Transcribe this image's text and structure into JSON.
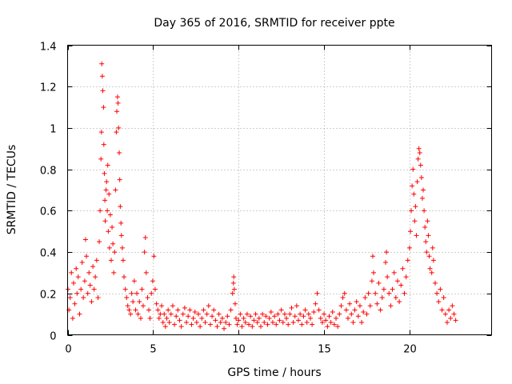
{
  "chart_data": {
    "type": "scatter",
    "title": "Day 365 of 2016, SRMTID for receiver ppte",
    "xlabel": "GPS time / hours",
    "ylabel": "SRMTID / TECUs",
    "xlim": [
      0,
      24.8
    ],
    "ylim": [
      0,
      1.4
    ],
    "xticks": [
      0,
      5,
      10,
      15,
      20
    ],
    "xtick_labels": [
      "0",
      "5",
      "10",
      "15",
      "20"
    ],
    "yticks": [
      0,
      0.2,
      0.4,
      0.6,
      0.8,
      1.0,
      1.2,
      1.4
    ],
    "ytick_labels": [
      "0",
      "0.2",
      "0.4",
      "0.6",
      "0.8",
      "1",
      "1.2",
      "1.4"
    ],
    "grid": true,
    "marker": "+",
    "color": "#ff0000",
    "series": [
      {
        "name": "SRMTID",
        "points": [
          [
            0.02,
            0.22
          ],
          [
            0.08,
            0.12
          ],
          [
            0.15,
            0.18
          ],
          [
            0.22,
            0.3
          ],
          [
            0.3,
            0.08
          ],
          [
            0.35,
            0.25
          ],
          [
            0.42,
            0.15
          ],
          [
            0.5,
            0.32
          ],
          [
            0.55,
            0.2
          ],
          [
            0.62,
            0.28
          ],
          [
            0.7,
            0.1
          ],
          [
            0.78,
            0.22
          ],
          [
            0.85,
            0.35
          ],
          [
            0.92,
            0.18
          ],
          [
            1.0,
            0.26
          ],
          [
            1.05,
            0.46
          ],
          [
            1.1,
            0.38
          ],
          [
            1.18,
            0.2
          ],
          [
            1.25,
            0.3
          ],
          [
            1.32,
            0.24
          ],
          [
            1.4,
            0.16
          ],
          [
            1.48,
            0.33
          ],
          [
            1.55,
            0.22
          ],
          [
            1.62,
            0.28
          ],
          [
            1.7,
            0.36
          ],
          [
            1.78,
            0.18
          ],
          [
            1.85,
            0.45
          ],
          [
            1.9,
            0.6
          ],
          [
            1.95,
            0.85
          ],
          [
            1.98,
            0.98
          ],
          [
            2.0,
            1.31
          ],
          [
            2.03,
            1.25
          ],
          [
            2.06,
            1.18
          ],
          [
            2.1,
            1.1
          ],
          [
            2.12,
            0.92
          ],
          [
            2.15,
            0.78
          ],
          [
            2.18,
            0.65
          ],
          [
            2.2,
            0.55
          ],
          [
            2.25,
            0.7
          ],
          [
            2.28,
            0.74
          ],
          [
            2.32,
            0.6
          ],
          [
            2.35,
            0.82
          ],
          [
            2.38,
            0.5
          ],
          [
            2.42,
            0.68
          ],
          [
            2.45,
            0.42
          ],
          [
            2.5,
            0.58
          ],
          [
            2.55,
            0.36
          ],
          [
            2.6,
            0.52
          ],
          [
            2.65,
            0.44
          ],
          [
            2.7,
            0.3
          ],
          [
            2.75,
            0.4
          ],
          [
            2.8,
            0.7
          ],
          [
            2.85,
            0.98
          ],
          [
            2.88,
            1.08
          ],
          [
            2.92,
            1.15
          ],
          [
            2.95,
            1.12
          ],
          [
            2.98,
            1.0
          ],
          [
            3.02,
            0.88
          ],
          [
            3.05,
            0.75
          ],
          [
            3.08,
            0.62
          ],
          [
            3.12,
            0.54
          ],
          [
            3.15,
            0.48
          ],
          [
            3.2,
            0.42
          ],
          [
            3.25,
            0.36
          ],
          [
            3.3,
            0.28
          ],
          [
            3.38,
            0.22
          ],
          [
            3.45,
            0.18
          ],
          [
            3.52,
            0.14
          ],
          [
            3.6,
            0.12
          ],
          [
            3.68,
            0.1
          ],
          [
            3.75,
            0.2
          ],
          [
            3.82,
            0.16
          ],
          [
            3.9,
            0.26
          ],
          [
            3.98,
            0.12
          ],
          [
            4.05,
            0.2
          ],
          [
            4.12,
            0.1
          ],
          [
            4.2,
            0.16
          ],
          [
            4.28,
            0.08
          ],
          [
            4.35,
            0.22
          ],
          [
            4.42,
            0.14
          ],
          [
            4.5,
            0.4
          ],
          [
            4.55,
            0.47
          ],
          [
            4.6,
            0.3
          ],
          [
            4.68,
            0.18
          ],
          [
            4.75,
            0.12
          ],
          [
            4.82,
            0.08
          ],
          [
            4.9,
            0.2
          ],
          [
            4.98,
            0.26
          ],
          [
            5.05,
            0.38
          ],
          [
            5.12,
            0.22
          ],
          [
            5.2,
            0.15
          ],
          [
            5.28,
            0.12
          ],
          [
            5.35,
            0.08
          ],
          [
            5.42,
            0.1
          ],
          [
            5.5,
            0.14
          ],
          [
            5.58,
            0.06
          ],
          [
            5.65,
            0.1
          ],
          [
            5.72,
            0.04
          ],
          [
            5.8,
            0.08
          ],
          [
            5.88,
            0.12
          ],
          [
            5.95,
            0.06
          ],
          [
            6.05,
            0.1
          ],
          [
            6.15,
            0.14
          ],
          [
            6.25,
            0.05
          ],
          [
            6.35,
            0.09
          ],
          [
            6.45,
            0.12
          ],
          [
            6.55,
            0.07
          ],
          [
            6.65,
            0.04
          ],
          [
            6.75,
            0.1
          ],
          [
            6.85,
            0.13
          ],
          [
            6.95,
            0.06
          ],
          [
            7.05,
            0.09
          ],
          [
            7.15,
            0.12
          ],
          [
            7.25,
            0.05
          ],
          [
            7.35,
            0.08
          ],
          [
            7.45,
            0.11
          ],
          [
            7.55,
            0.06
          ],
          [
            7.65,
            0.1
          ],
          [
            7.75,
            0.04
          ],
          [
            7.85,
            0.08
          ],
          [
            7.95,
            0.12
          ],
          [
            8.05,
            0.06
          ],
          [
            8.15,
            0.1
          ],
          [
            8.25,
            0.14
          ],
          [
            8.35,
            0.05
          ],
          [
            8.45,
            0.09
          ],
          [
            8.55,
            0.12
          ],
          [
            8.65,
            0.07
          ],
          [
            8.75,
            0.04
          ],
          [
            8.85,
            0.1
          ],
          [
            8.95,
            0.06
          ],
          [
            9.05,
            0.08
          ],
          [
            9.15,
            0.03
          ],
          [
            9.25,
            0.06
          ],
          [
            9.35,
            0.09
          ],
          [
            9.45,
            0.05
          ],
          [
            9.55,
            0.12
          ],
          [
            9.65,
            0.2
          ],
          [
            9.7,
            0.25
          ],
          [
            9.72,
            0.28
          ],
          [
            9.75,
            0.22
          ],
          [
            9.8,
            0.15
          ],
          [
            9.85,
            0.08
          ],
          [
            9.92,
            0.05
          ],
          [
            10.0,
            0.07
          ],
          [
            10.1,
            0.1
          ],
          [
            10.2,
            0.04
          ],
          [
            10.3,
            0.08
          ],
          [
            10.4,
            0.06
          ],
          [
            10.5,
            0.1
          ],
          [
            10.6,
            0.05
          ],
          [
            10.7,
            0.09
          ],
          [
            10.8,
            0.04
          ],
          [
            10.9,
            0.07
          ],
          [
            11.0,
            0.1
          ],
          [
            11.1,
            0.06
          ],
          [
            11.2,
            0.08
          ],
          [
            11.3,
            0.04
          ],
          [
            11.4,
            0.1
          ],
          [
            11.5,
            0.06
          ],
          [
            11.6,
            0.09
          ],
          [
            11.7,
            0.05
          ],
          [
            11.8,
            0.08
          ],
          [
            11.9,
            0.11
          ],
          [
            12.0,
            0.06
          ],
          [
            12.1,
            0.09
          ],
          [
            12.2,
            0.05
          ],
          [
            12.3,
            0.1
          ],
          [
            12.4,
            0.07
          ],
          [
            12.5,
            0.12
          ],
          [
            12.6,
            0.06
          ],
          [
            12.7,
            0.1
          ],
          [
            12.8,
            0.08
          ],
          [
            12.9,
            0.05
          ],
          [
            13.0,
            0.1
          ],
          [
            13.1,
            0.13
          ],
          [
            13.2,
            0.06
          ],
          [
            13.3,
            0.09
          ],
          [
            13.4,
            0.14
          ],
          [
            13.5,
            0.07
          ],
          [
            13.6,
            0.1
          ],
          [
            13.7,
            0.05
          ],
          [
            13.8,
            0.09
          ],
          [
            13.9,
            0.12
          ],
          [
            14.0,
            0.06
          ],
          [
            14.1,
            0.1
          ],
          [
            14.2,
            0.08
          ],
          [
            14.3,
            0.05
          ],
          [
            14.4,
            0.11
          ],
          [
            14.5,
            0.15
          ],
          [
            14.6,
            0.2
          ],
          [
            14.7,
            0.12
          ],
          [
            14.8,
            0.08
          ],
          [
            14.9,
            0.06
          ],
          [
            15.0,
            0.1
          ],
          [
            15.1,
            0.07
          ],
          [
            15.2,
            0.04
          ],
          [
            15.3,
            0.09
          ],
          [
            15.4,
            0.06
          ],
          [
            15.5,
            0.11
          ],
          [
            15.6,
            0.05
          ],
          [
            15.7,
            0.08
          ],
          [
            15.8,
            0.04
          ],
          [
            15.9,
            0.1
          ],
          [
            16.0,
            0.14
          ],
          [
            16.1,
            0.18
          ],
          [
            16.2,
            0.2
          ],
          [
            16.3,
            0.12
          ],
          [
            16.4,
            0.08
          ],
          [
            16.5,
            0.15
          ],
          [
            16.6,
            0.1
          ],
          [
            16.7,
            0.06
          ],
          [
            16.8,
            0.12
          ],
          [
            16.9,
            0.16
          ],
          [
            17.0,
            0.09
          ],
          [
            17.1,
            0.14
          ],
          [
            17.2,
            0.06
          ],
          [
            17.3,
            0.11
          ],
          [
            17.4,
            0.18
          ],
          [
            17.5,
            0.1
          ],
          [
            17.6,
            0.2
          ],
          [
            17.7,
            0.14
          ],
          [
            17.8,
            0.26
          ],
          [
            17.85,
            0.38
          ],
          [
            17.9,
            0.3
          ],
          [
            18.0,
            0.2
          ],
          [
            18.1,
            0.15
          ],
          [
            18.2,
            0.25
          ],
          [
            18.3,
            0.12
          ],
          [
            18.4,
            0.18
          ],
          [
            18.5,
            0.22
          ],
          [
            18.6,
            0.35
          ],
          [
            18.65,
            0.4
          ],
          [
            18.7,
            0.28
          ],
          [
            18.8,
            0.2
          ],
          [
            18.9,
            0.14
          ],
          [
            19.0,
            0.22
          ],
          [
            19.1,
            0.3
          ],
          [
            19.2,
            0.18
          ],
          [
            19.3,
            0.26
          ],
          [
            19.4,
            0.16
          ],
          [
            19.5,
            0.24
          ],
          [
            19.6,
            0.32
          ],
          [
            19.7,
            0.2
          ],
          [
            19.8,
            0.28
          ],
          [
            19.9,
            0.36
          ],
          [
            20.0,
            0.42
          ],
          [
            20.05,
            0.5
          ],
          [
            20.1,
            0.6
          ],
          [
            20.15,
            0.72
          ],
          [
            20.2,
            0.8
          ],
          [
            20.25,
            0.68
          ],
          [
            20.3,
            0.55
          ],
          [
            20.35,
            0.62
          ],
          [
            20.4,
            0.48
          ],
          [
            20.45,
            0.74
          ],
          [
            20.5,
            0.85
          ],
          [
            20.55,
            0.9
          ],
          [
            20.6,
            0.88
          ],
          [
            20.65,
            0.82
          ],
          [
            20.7,
            0.76
          ],
          [
            20.75,
            0.66
          ],
          [
            20.8,
            0.7
          ],
          [
            20.85,
            0.6
          ],
          [
            20.9,
            0.52
          ],
          [
            20.95,
            0.45
          ],
          [
            21.0,
            0.4
          ],
          [
            21.05,
            0.55
          ],
          [
            21.1,
            0.48
          ],
          [
            21.15,
            0.38
          ],
          [
            21.2,
            0.32
          ],
          [
            21.3,
            0.3
          ],
          [
            21.35,
            0.42
          ],
          [
            21.4,
            0.36
          ],
          [
            21.5,
            0.25
          ],
          [
            21.6,
            0.2
          ],
          [
            21.7,
            0.16
          ],
          [
            21.8,
            0.22
          ],
          [
            21.9,
            0.12
          ],
          [
            22.0,
            0.18
          ],
          [
            22.1,
            0.1
          ],
          [
            22.2,
            0.06
          ],
          [
            22.3,
            0.12
          ],
          [
            22.4,
            0.08
          ],
          [
            22.5,
            0.14
          ],
          [
            22.6,
            0.1
          ],
          [
            22.7,
            0.07
          ]
        ]
      }
    ]
  }
}
